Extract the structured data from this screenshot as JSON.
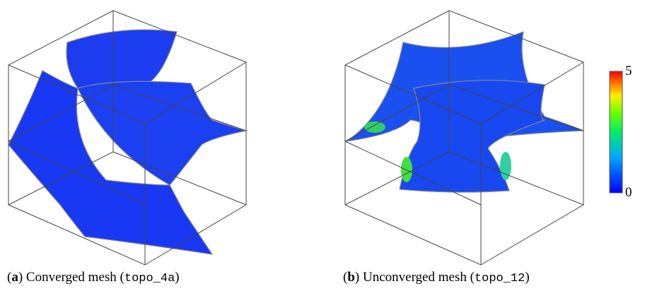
{
  "figures": [
    {
      "open": "(",
      "label": "a",
      "text": ") Converged mesh (",
      "code": "topo_4a",
      "close": ")"
    },
    {
      "open": "(",
      "label": "b",
      "text": ") Unconverged mesh (",
      "code": "topo_12",
      "close": ")"
    }
  ],
  "colorbar": {
    "max": 5,
    "min": 0
  }
}
